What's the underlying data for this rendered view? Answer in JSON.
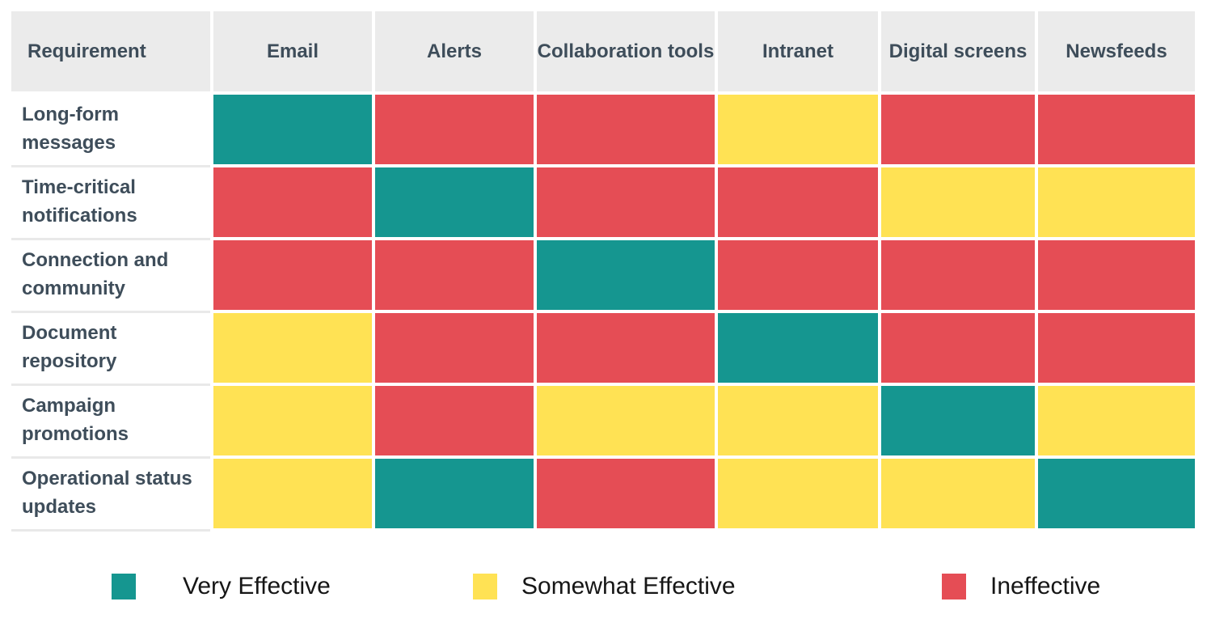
{
  "colors": {
    "very": "#159690",
    "somewhat": "#FFE254",
    "ineffective": "#E54D55",
    "header_bg": "#EBEBEB",
    "header_text": "#3E4D5A",
    "legend_text": "#161616",
    "row_separator": "#E9E9E9"
  },
  "table": {
    "header": [
      "Requirement",
      "Email",
      "Alerts",
      "Collaboration tools",
      "Intranet",
      "Digital screens",
      "Newsfeeds"
    ],
    "rows": [
      {
        "label": "Long-form messages",
        "cells": [
          "very",
          "ineffective",
          "ineffective",
          "somewhat",
          "ineffective",
          "ineffective"
        ]
      },
      {
        "label": "Time-critical notifications",
        "cells": [
          "ineffective",
          "very",
          "ineffective",
          "ineffective",
          "somewhat",
          "somewhat"
        ]
      },
      {
        "label": "Connection and community",
        "cells": [
          "ineffective",
          "ineffective",
          "very",
          "ineffective",
          "ineffective",
          "ineffective"
        ]
      },
      {
        "label": "Document repository",
        "cells": [
          "somewhat",
          "ineffective",
          "ineffective",
          "very",
          "ineffective",
          "ineffective"
        ]
      },
      {
        "label": "Campaign promotions",
        "cells": [
          "somewhat",
          "ineffective",
          "somewhat",
          "somewhat",
          "very",
          "somewhat"
        ]
      },
      {
        "label": "Operational status updates",
        "cells": [
          "somewhat",
          "very",
          "ineffective",
          "somewhat",
          "somewhat",
          "very"
        ]
      }
    ]
  },
  "legend": {
    "items": [
      {
        "key": "very",
        "label": "Very Effective"
      },
      {
        "key": "somewhat",
        "label": "Somewhat Effective"
      },
      {
        "key": "ineffective",
        "label": "Ineffective"
      }
    ]
  },
  "chart_data": {
    "type": "heatmap",
    "corner_header": "Requirement",
    "x_categories": [
      "Email",
      "Alerts",
      "Collaboration tools",
      "Intranet",
      "Digital screens",
      "Newsfeeds"
    ],
    "y_categories": [
      "Long-form messages",
      "Time-critical notifications",
      "Connection and community",
      "Document repository",
      "Campaign promotions",
      "Operational status updates"
    ],
    "values": [
      [
        "Very Effective",
        "Ineffective",
        "Ineffective",
        "Somewhat Effective",
        "Ineffective",
        "Ineffective"
      ],
      [
        "Ineffective",
        "Very Effective",
        "Ineffective",
        "Ineffective",
        "Somewhat Effective",
        "Somewhat Effective"
      ],
      [
        "Ineffective",
        "Ineffective",
        "Very Effective",
        "Ineffective",
        "Ineffective",
        "Ineffective"
      ],
      [
        "Somewhat Effective",
        "Ineffective",
        "Ineffective",
        "Very Effective",
        "Ineffective",
        "Ineffective"
      ],
      [
        "Somewhat Effective",
        "Ineffective",
        "Somewhat Effective",
        "Somewhat Effective",
        "Very Effective",
        "Somewhat Effective"
      ],
      [
        "Somewhat Effective",
        "Very Effective",
        "Ineffective",
        "Somewhat Effective",
        "Somewhat Effective",
        "Very Effective"
      ]
    ],
    "value_scale": [
      "Very Effective",
      "Somewhat Effective",
      "Ineffective"
    ],
    "legend_position": "bottom",
    "legend": [
      {
        "label": "Very Effective",
        "color": "#159690"
      },
      {
        "label": "Somewhat Effective",
        "color": "#FFE254"
      },
      {
        "label": "Ineffective",
        "color": "#E54D55"
      }
    ]
  }
}
